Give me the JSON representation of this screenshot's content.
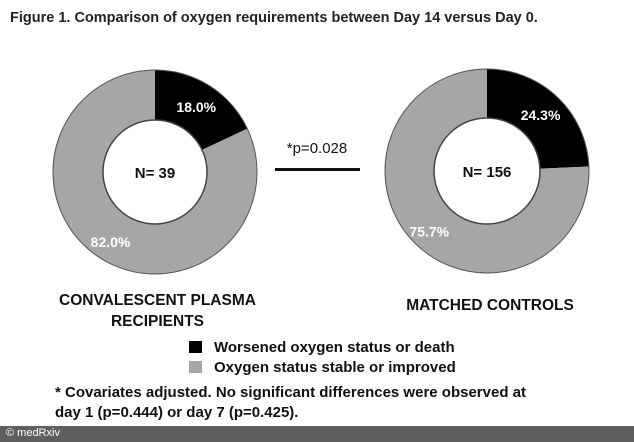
{
  "figure_title": "Figure 1. Comparison of oxygen requirements between Day 14 versus Day 0.",
  "colors": {
    "worsened": "#000000",
    "stable": "#a6a6a6",
    "center": "#ffffff"
  },
  "chart_data": [
    {
      "type": "pie",
      "style": "donut",
      "group_label": "CONVALESCENT PLASMA RECIPIENTS",
      "center_label": "N= 39",
      "categories": [
        "Worsened oxygen status or death",
        "Oxygen status stable or improved"
      ],
      "values": [
        18.0,
        82.0
      ],
      "value_labels": [
        "18.0%",
        "82.0%"
      ]
    },
    {
      "type": "pie",
      "style": "donut",
      "group_label": "MATCHED CONTROLS",
      "center_label": "N= 156",
      "categories": [
        "Worsened oxygen status or death",
        "Oxygen status stable or improved"
      ],
      "values": [
        24.3,
        75.7
      ],
      "value_labels": [
        "24.3%",
        "75.7%"
      ]
    }
  ],
  "comparison": {
    "p_value": "*p=0.028"
  },
  "legend": [
    {
      "label": "Worsened oxygen status or death",
      "color": "#000000"
    },
    {
      "label": "Oxygen status stable or improved",
      "color": "#a6a6a6"
    }
  ],
  "footnote_line1": "* Covariates adjusted. No significant differences were observed at",
  "footnote_line2": "day 1 (p=0.444) or day 7 (p=0.425).",
  "watermark": "© medRxiv"
}
